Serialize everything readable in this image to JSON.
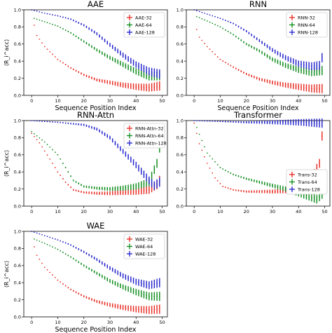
{
  "chart_data": [
    {
      "type": "scatter",
      "title": "AAE",
      "xlabel": "Sequence Position Index",
      "ylabel": "⟨R_i^acc⟩",
      "xlim": [
        -3,
        52
      ],
      "ylim": [
        0,
        1.0
      ],
      "xticks": [
        "0",
        "10",
        "20",
        "30",
        "40",
        "50"
      ],
      "yticks": [
        "0.0",
        "0.2",
        "0.4",
        "0.6",
        "0.8",
        "1.0"
      ],
      "legend": "top-right",
      "show_ylabel": true,
      "show_xlabel": true,
      "series": [
        {
          "name": "AAE-32",
          "color": "#e8271e",
          "anchors": [
            [
              0,
              1.0
            ],
            [
              1,
              0.82
            ],
            [
              2,
              0.7
            ],
            [
              5,
              0.57
            ],
            [
              10,
              0.42
            ],
            [
              15,
              0.32
            ],
            [
              20,
              0.24
            ],
            [
              25,
              0.18
            ],
            [
              30,
              0.15
            ],
            [
              35,
              0.12
            ],
            [
              40,
              0.1
            ],
            [
              45,
              0.09
            ],
            [
              49,
              0.11
            ]
          ]
        },
        {
          "name": "AAE-64",
          "color": "#0a8a18",
          "anchors": [
            [
              0,
              1.0
            ],
            [
              1,
              0.9
            ],
            [
              5,
              0.86
            ],
            [
              10,
              0.81
            ],
            [
              15,
              0.73
            ],
            [
              20,
              0.63
            ],
            [
              25,
              0.53
            ],
            [
              30,
              0.44
            ],
            [
              35,
              0.36
            ],
            [
              40,
              0.28
            ],
            [
              45,
              0.22
            ],
            [
              49,
              0.23
            ]
          ]
        },
        {
          "name": "AAE-128",
          "color": "#1f1fcc",
          "anchors": [
            [
              0,
              1.0
            ],
            [
              5,
              0.96
            ],
            [
              10,
              0.93
            ],
            [
              15,
              0.89
            ],
            [
              20,
              0.82
            ],
            [
              25,
              0.72
            ],
            [
              30,
              0.59
            ],
            [
              35,
              0.47
            ],
            [
              40,
              0.36
            ],
            [
              45,
              0.28
            ],
            [
              49,
              0.25
            ]
          ]
        }
      ]
    },
    {
      "type": "scatter",
      "title": "RNN",
      "xlabel": "Sequence Position Index",
      "ylabel": "",
      "xlim": [
        -3,
        52
      ],
      "ylim": [
        0,
        1.0
      ],
      "xticks": [
        "0",
        "10",
        "20",
        "30",
        "40",
        "50"
      ],
      "yticks": [
        "0.0",
        "0.2",
        "0.4",
        "0.6",
        "0.8",
        "1.0"
      ],
      "legend": "top-right",
      "show_ylabel": false,
      "show_xlabel": true,
      "series": [
        {
          "name": "RNN-32",
          "color": "#e8271e",
          "anchors": [
            [
              0,
              1.0
            ],
            [
              1,
              0.77
            ],
            [
              2,
              0.68
            ],
            [
              5,
              0.57
            ],
            [
              10,
              0.42
            ],
            [
              15,
              0.33
            ],
            [
              20,
              0.25
            ],
            [
              25,
              0.19
            ],
            [
              30,
              0.15
            ],
            [
              35,
              0.12
            ],
            [
              40,
              0.1
            ],
            [
              45,
              0.08
            ],
            [
              49,
              0.08
            ]
          ]
        },
        {
          "name": "RNN-64",
          "color": "#0a8a18",
          "anchors": [
            [
              0,
              1.0
            ],
            [
              1,
              0.92
            ],
            [
              5,
              0.87
            ],
            [
              10,
              0.8
            ],
            [
              15,
              0.71
            ],
            [
              20,
              0.6
            ],
            [
              25,
              0.52
            ],
            [
              30,
              0.42
            ],
            [
              35,
              0.35
            ],
            [
              40,
              0.3
            ],
            [
              45,
              0.27
            ],
            [
              49,
              0.29
            ]
          ]
        },
        {
          "name": "RNN-128",
          "color": "#1f1fcc",
          "anchors": [
            [
              0,
              1.0
            ],
            [
              5,
              0.95
            ],
            [
              10,
              0.9
            ],
            [
              15,
              0.84
            ],
            [
              20,
              0.75
            ],
            [
              25,
              0.64
            ],
            [
              30,
              0.53
            ],
            [
              35,
              0.44
            ],
            [
              40,
              0.37
            ],
            [
              45,
              0.34
            ],
            [
              48,
              0.35
            ],
            [
              49,
              0.44
            ]
          ]
        }
      ]
    },
    {
      "type": "scatter",
      "title": "RNN-Attn",
      "xlabel": "",
      "ylabel": "⟨R_i^acc⟩",
      "xlim": [
        -3,
        52
      ],
      "ylim": [
        0,
        1.0
      ],
      "xticks": [
        "0",
        "10",
        "20",
        "30",
        "40",
        "50"
      ],
      "yticks": [
        "0.0",
        "0.2",
        "0.4",
        "0.6",
        "0.8",
        "1.0"
      ],
      "legend": "top-right",
      "show_ylabel": true,
      "show_xlabel": false,
      "series": [
        {
          "name": "RNN-Attn-32",
          "color": "#e8271e",
          "anchors": [
            [
              0,
              0.85
            ],
            [
              3,
              0.74
            ],
            [
              7,
              0.55
            ],
            [
              10,
              0.4
            ],
            [
              13,
              0.28
            ],
            [
              16,
              0.19
            ],
            [
              20,
              0.16
            ],
            [
              25,
              0.15
            ],
            [
              30,
              0.15
            ],
            [
              35,
              0.16
            ],
            [
              40,
              0.17
            ],
            [
              45,
              0.19
            ],
            [
              48,
              0.25
            ],
            [
              49,
              0.3
            ]
          ]
        },
        {
          "name": "RNN-Attn-64",
          "color": "#0a8a18",
          "anchors": [
            [
              0,
              0.87
            ],
            [
              5,
              0.75
            ],
            [
              10,
              0.6
            ],
            [
              13,
              0.45
            ],
            [
              16,
              0.3
            ],
            [
              20,
              0.23
            ],
            [
              25,
              0.21
            ],
            [
              30,
              0.2
            ],
            [
              35,
              0.21
            ],
            [
              40,
              0.23
            ],
            [
              45,
              0.28
            ],
            [
              48,
              0.5
            ],
            [
              49,
              0.68
            ]
          ]
        },
        {
          "name": "RNN-Attn-128",
          "color": "#1f1fcc",
          "anchors": [
            [
              0,
              1.0
            ],
            [
              10,
              0.98
            ],
            [
              20,
              0.95
            ],
            [
              25,
              0.9
            ],
            [
              30,
              0.8
            ],
            [
              35,
              0.64
            ],
            [
              40,
              0.48
            ],
            [
              45,
              0.3
            ],
            [
              47,
              0.24
            ],
            [
              49,
              0.28
            ]
          ]
        }
      ]
    },
    {
      "type": "scatter",
      "title": "Transformer",
      "xlabel": "",
      "ylabel": "",
      "xlim": [
        -3,
        52
      ],
      "ylim": [
        0,
        1.0
      ],
      "xticks": [
        "0",
        "10",
        "20",
        "30",
        "40",
        "50"
      ],
      "yticks": [
        "0.0",
        "0.2",
        "0.4",
        "0.6",
        "0.8",
        "1.0"
      ],
      "legend": "middle-right",
      "show_ylabel": false,
      "show_xlabel": false,
      "series": [
        {
          "name": "Trans-32",
          "color": "#e8271e",
          "anchors": [
            [
              0,
              0.97
            ],
            [
              2,
              0.73
            ],
            [
              5,
              0.5
            ],
            [
              8,
              0.33
            ],
            [
              11,
              0.23
            ],
            [
              15,
              0.19
            ],
            [
              20,
              0.17
            ],
            [
              25,
              0.17
            ],
            [
              30,
              0.17
            ],
            [
              35,
              0.18
            ],
            [
              40,
              0.21
            ],
            [
              45,
              0.33
            ],
            [
              48,
              0.5
            ],
            [
              49,
              0.82
            ]
          ]
        },
        {
          "name": "Trans-64",
          "color": "#0a8a18",
          "anchors": [
            [
              0,
              1.0
            ],
            [
              2,
              0.84
            ],
            [
              5,
              0.62
            ],
            [
              10,
              0.45
            ],
            [
              15,
              0.37
            ],
            [
              20,
              0.32
            ],
            [
              25,
              0.28
            ],
            [
              30,
              0.24
            ],
            [
              35,
              0.2
            ],
            [
              40,
              0.15
            ],
            [
              45,
              0.1
            ],
            [
              47,
              0.08
            ],
            [
              49,
              0.14
            ]
          ]
        },
        {
          "name": "Trans-128",
          "color": "#1f1fcc",
          "anchors": [
            [
              0,
              1.0
            ],
            [
              10,
              0.99
            ],
            [
              20,
              0.98
            ],
            [
              30,
              0.98
            ],
            [
              40,
              0.98
            ],
            [
              49,
              0.97
            ]
          ]
        }
      ]
    },
    {
      "type": "scatter",
      "title": "WAE",
      "xlabel": "Sequence Position Index",
      "ylabel": "⟨R_i^acc⟩",
      "xlim": [
        -3,
        52
      ],
      "ylim": [
        0,
        1.0
      ],
      "xticks": [
        "0",
        "10",
        "20",
        "30",
        "40",
        "50"
      ],
      "yticks": [
        "0.0",
        "0.2",
        "0.4",
        "0.6",
        "0.8",
        "1.0"
      ],
      "legend": "top-right",
      "show_ylabel": true,
      "show_xlabel": true,
      "series": [
        {
          "name": "WAE-32",
          "color": "#e8271e",
          "anchors": [
            [
              0,
              1.0
            ],
            [
              1,
              0.82
            ],
            [
              2,
              0.72
            ],
            [
              5,
              0.58
            ],
            [
              10,
              0.43
            ],
            [
              15,
              0.32
            ],
            [
              20,
              0.24
            ],
            [
              25,
              0.18
            ],
            [
              30,
              0.14
            ],
            [
              35,
              0.11
            ],
            [
              40,
              0.09
            ],
            [
              45,
              0.08
            ],
            [
              49,
              0.09
            ]
          ]
        },
        {
          "name": "WAE-64",
          "color": "#0a8a18",
          "anchors": [
            [
              0,
              1.0
            ],
            [
              1,
              0.91
            ],
            [
              5,
              0.86
            ],
            [
              10,
              0.79
            ],
            [
              15,
              0.7
            ],
            [
              20,
              0.6
            ],
            [
              25,
              0.51
            ],
            [
              30,
              0.42
            ],
            [
              35,
              0.35
            ],
            [
              40,
              0.29
            ],
            [
              45,
              0.24
            ],
            [
              49,
              0.24
            ]
          ]
        },
        {
          "name": "WAE-128",
          "color": "#1f1fcc",
          "anchors": [
            [
              0,
              1.0
            ],
            [
              5,
              0.95
            ],
            [
              10,
              0.9
            ],
            [
              15,
              0.84
            ],
            [
              20,
              0.76
            ],
            [
              25,
              0.67
            ],
            [
              30,
              0.57
            ],
            [
              35,
              0.48
            ],
            [
              40,
              0.41
            ],
            [
              45,
              0.37
            ],
            [
              49,
              0.4
            ]
          ]
        }
      ]
    }
  ]
}
